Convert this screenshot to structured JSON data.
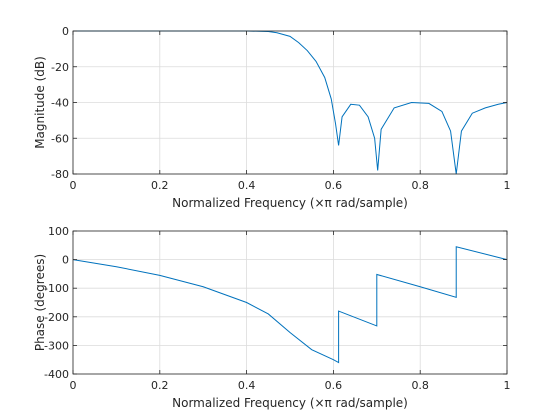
{
  "chart_data": [
    {
      "type": "line",
      "xlabel": "Normalized Frequency  (×π rad/sample)",
      "ylabel": "Magnitude (dB)",
      "xlim": [
        0,
        1
      ],
      "ylim": [
        -80,
        0
      ],
      "xticks": [
        0,
        0.2,
        0.4,
        0.6,
        0.8,
        1
      ],
      "xtick_labels": [
        "0",
        "0.2",
        "0.4",
        "0.6",
        "0.8",
        "1"
      ],
      "yticks": [
        -80,
        -60,
        -40,
        -20,
        0
      ],
      "ytick_labels": [
        "-80",
        "-60",
        "-40",
        "-20",
        "0"
      ],
      "grid": true,
      "color": "#0072BD",
      "series": [
        {
          "x": [
            0,
            0.1,
            0.2,
            0.3,
            0.4,
            0.45,
            0.47,
            0.5,
            0.52,
            0.54,
            0.56,
            0.58,
            0.595,
            0.605,
            0.612,
            0.62,
            0.64,
            0.66,
            0.68,
            0.695,
            0.702,
            0.71,
            0.74,
            0.78,
            0.82,
            0.85,
            0.87,
            0.883,
            0.895,
            0.92,
            0.95,
            0.98,
            1.0
          ],
          "y": [
            0,
            0,
            0,
            0,
            0,
            -0.3,
            -1,
            -3,
            -6.5,
            -11,
            -17,
            -26,
            -38,
            -52,
            -64,
            -48,
            -41,
            -41.5,
            -48,
            -60,
            -78,
            -55,
            -43,
            -40,
            -40.5,
            -45,
            -56,
            -80,
            -56,
            -46,
            -43,
            -41,
            -40
          ]
        }
      ]
    },
    {
      "type": "line",
      "xlabel": "Normalized Frequency  (×π rad/sample)",
      "ylabel": "Phase (degrees)",
      "xlim": [
        0,
        1
      ],
      "ylim": [
        -400,
        100
      ],
      "xticks": [
        0,
        0.2,
        0.4,
        0.6,
        0.8,
        1
      ],
      "xtick_labels": [
        "0",
        "0.2",
        "0.4",
        "0.6",
        "0.8",
        "1"
      ],
      "yticks": [
        -400,
        -300,
        -200,
        -100,
        0,
        100
      ],
      "ytick_labels": [
        "-400",
        "-300",
        "-200",
        "-100",
        "0",
        "100"
      ],
      "grid": true,
      "color": "#0072BD",
      "series": [
        {
          "x": [
            0,
            0.1,
            0.2,
            0.3,
            0.4,
            0.45,
            0.5,
            0.55,
            0.6,
            0.612,
            0.612,
            0.7,
            0.7,
            0.8,
            0.883,
            0.883,
            1.0
          ],
          "y": [
            0,
            -25,
            -55,
            -95,
            -150,
            -190,
            -255,
            -315,
            -350,
            -360,
            -180,
            -232,
            -52,
            -95,
            -132,
            45,
            0
          ]
        }
      ]
    }
  ]
}
